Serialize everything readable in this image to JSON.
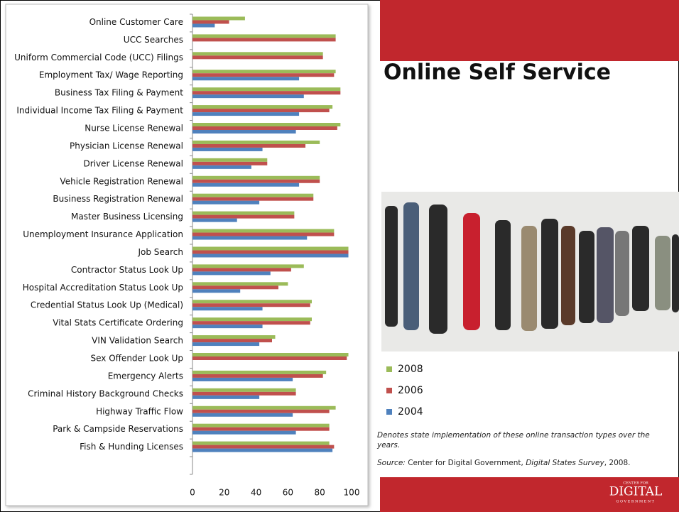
{
  "chart_data": {
    "type": "bar",
    "orientation": "horizontal",
    "categories": [
      "Online Customer Care",
      "UCC Searches",
      "Uniform Commercial Code (UCC) Filings",
      "Employment Tax/ Wage Reporting",
      "Business Tax Filing & Payment",
      "Individual Income Tax Filing & Payment",
      "Nurse License Renewal",
      "Physician License Renewal",
      "Driver License Renewal",
      "Vehicle Registration Renewal",
      "Business Registration Renewal",
      "Master Business Licensing",
      "Unemployment Insurance Application",
      "Job Search",
      "Contractor Status Look Up",
      "Hospital Accreditation Status Look Up",
      "Credential Status Look Up (Medical)",
      "Vital Stats Certificate Ordering",
      "VIN Validation Search",
      "Sex Offender Look Up",
      "Emergency Alerts",
      "Criminal History Background Checks",
      "Highway Traffic Flow",
      "Park & Campside Reservations",
      "Fish & Hunding Licenses"
    ],
    "series": [
      {
        "name": "2008",
        "color": "#9bbb59",
        "values": [
          33,
          90,
          82,
          90,
          93,
          88,
          93,
          80,
          47,
          80,
          76,
          64,
          89,
          98,
          70,
          60,
          75,
          75,
          52,
          98,
          84,
          65,
          90,
          86,
          86
        ]
      },
      {
        "name": "2006",
        "color": "#c0504d",
        "values": [
          23,
          90,
          82,
          89,
          93,
          86,
          91,
          71,
          47,
          80,
          76,
          64,
          89,
          98,
          62,
          54,
          74,
          74,
          50,
          97,
          82,
          65,
          86,
          86,
          89
        ]
      },
      {
        "name": "2004",
        "color": "#4f81bd",
        "values": [
          14,
          0,
          0,
          67,
          70,
          67,
          65,
          44,
          37,
          67,
          42,
          28,
          72,
          98,
          49,
          30,
          44,
          44,
          42,
          0,
          63,
          42,
          63,
          65,
          88
        ]
      }
    ],
    "xlim": [
      0,
      100
    ],
    "xticks": [
      0,
      20,
      40,
      60,
      80,
      100
    ]
  },
  "slide": {
    "title": "Online Self Service",
    "note": "Denotes state implementation of these online transaction types over the years.",
    "source_label": "Source:",
    "source_text": "Center for Digital Government,",
    "source_title": "Digital States Survey",
    "source_end": ", 2008.",
    "logo_top": "CENTER FOR",
    "logo_main": "DIGITAL",
    "logo_bottom": "GOVERNMENT"
  }
}
